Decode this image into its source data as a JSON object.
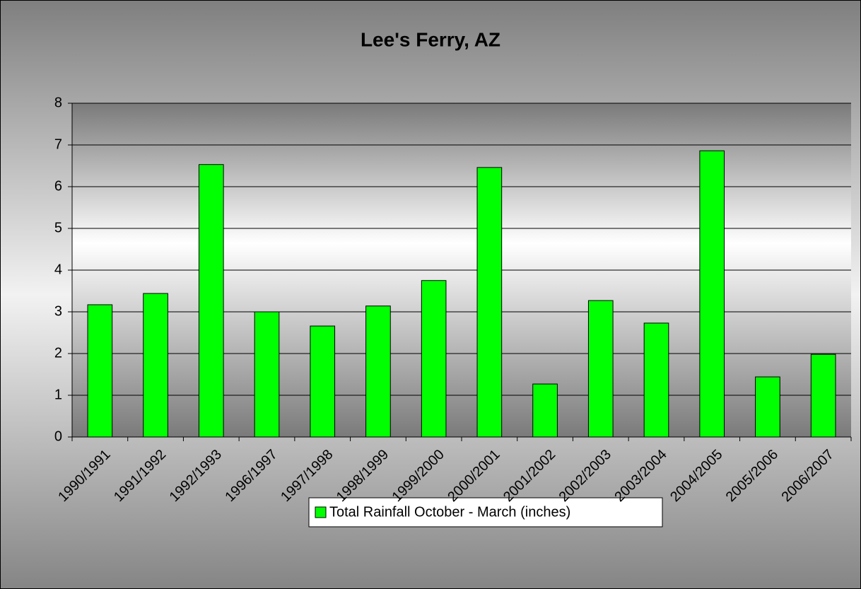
{
  "chart_data": {
    "type": "bar",
    "title": "Lee's Ferry, AZ",
    "categories": [
      "1990/1991",
      "1991/1992",
      "1992/1993",
      "1996/1997",
      "1997/1998",
      "1998/1999",
      "1999/2000",
      "2000/2001",
      "2001/2002",
      "2002/2003",
      "2003/2004",
      "2004/2005",
      "2005/2006",
      "2006/2007"
    ],
    "series": [
      {
        "name": "Total Rainfall October - March (inches)",
        "color": "#00ff00",
        "values": [
          3.17,
          3.44,
          6.53,
          3.0,
          2.66,
          3.14,
          3.75,
          6.46,
          1.27,
          3.27,
          2.73,
          6.86,
          1.44,
          1.98
        ]
      }
    ],
    "ylim": [
      0,
      8
    ],
    "yticks": [
      0,
      1,
      2,
      3,
      4,
      5,
      6,
      7,
      8
    ],
    "grid": true,
    "legend": "bottom"
  }
}
